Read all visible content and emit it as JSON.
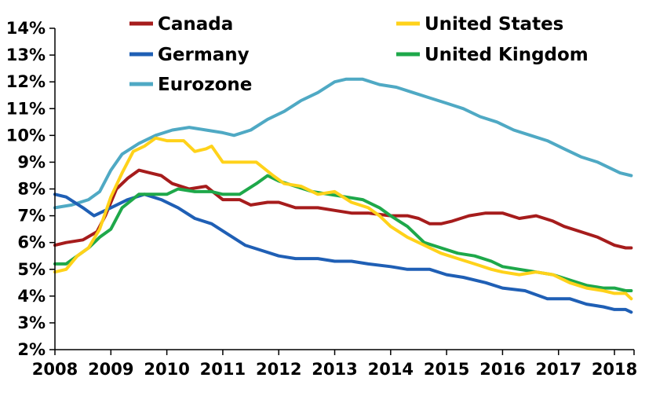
{
  "chart_data": {
    "type": "line",
    "title": "",
    "xlabel": "",
    "ylabel": "",
    "xlim": [
      2008,
      2018.35
    ],
    "ylim": [
      2,
      14
    ],
    "grid": false,
    "legend_position": "top",
    "x_ticks": [
      "2008",
      "2009",
      "2010",
      "2011",
      "2012",
      "2013",
      "2014",
      "2015",
      "2016",
      "2017",
      "2018"
    ],
    "y_ticks": [
      "2%",
      "3%",
      "4%",
      "5%",
      "6%",
      "7%",
      "8%",
      "9%",
      "10%",
      "11%",
      "12%",
      "13%",
      "14%"
    ],
    "series": [
      {
        "name": "Canada",
        "color": "#a61c1c",
        "points": [
          [
            2008,
            5.9
          ],
          [
            2008.2,
            6.0
          ],
          [
            2008.5,
            6.1
          ],
          [
            2008.75,
            6.4
          ],
          [
            2008.9,
            7.0
          ],
          [
            2009.1,
            8.0
          ],
          [
            2009.3,
            8.4
          ],
          [
            2009.5,
            8.7
          ],
          [
            2009.7,
            8.6
          ],
          [
            2009.9,
            8.5
          ],
          [
            2010.1,
            8.2
          ],
          [
            2010.4,
            8.0
          ],
          [
            2010.7,
            8.1
          ],
          [
            2011,
            7.6
          ],
          [
            2011.3,
            7.6
          ],
          [
            2011.5,
            7.4
          ],
          [
            2011.8,
            7.5
          ],
          [
            2012,
            7.5
          ],
          [
            2012.3,
            7.3
          ],
          [
            2012.7,
            7.3
          ],
          [
            2013,
            7.2
          ],
          [
            2013.3,
            7.1
          ],
          [
            2013.6,
            7.1
          ],
          [
            2014,
            7.0
          ],
          [
            2014.3,
            7.0
          ],
          [
            2014.5,
            6.9
          ],
          [
            2014.7,
            6.7
          ],
          [
            2014.9,
            6.7
          ],
          [
            2015.1,
            6.8
          ],
          [
            2015.4,
            7.0
          ],
          [
            2015.7,
            7.1
          ],
          [
            2016,
            7.1
          ],
          [
            2016.3,
            6.9
          ],
          [
            2016.6,
            7.0
          ],
          [
            2016.9,
            6.8
          ],
          [
            2017.1,
            6.6
          ],
          [
            2017.4,
            6.4
          ],
          [
            2017.7,
            6.2
          ],
          [
            2017.9,
            6.0
          ],
          [
            2018,
            5.9
          ],
          [
            2018.2,
            5.8
          ],
          [
            2018.3,
            5.8
          ]
        ]
      },
      {
        "name": "United States",
        "color": "#ffd21a",
        "points": [
          [
            2008,
            4.9
          ],
          [
            2008.2,
            5.0
          ],
          [
            2008.4,
            5.5
          ],
          [
            2008.6,
            5.8
          ],
          [
            2008.8,
            6.5
          ],
          [
            2009,
            7.7
          ],
          [
            2009.2,
            8.6
          ],
          [
            2009.4,
            9.4
          ],
          [
            2009.6,
            9.6
          ],
          [
            2009.8,
            9.9
          ],
          [
            2010,
            9.8
          ],
          [
            2010.3,
            9.8
          ],
          [
            2010.5,
            9.4
          ],
          [
            2010.7,
            9.5
          ],
          [
            2010.8,
            9.6
          ],
          [
            2011,
            9.0
          ],
          [
            2011.3,
            9.0
          ],
          [
            2011.6,
            9.0
          ],
          [
            2011.9,
            8.5
          ],
          [
            2012.1,
            8.2
          ],
          [
            2012.4,
            8.1
          ],
          [
            2012.7,
            7.8
          ],
          [
            2013,
            7.9
          ],
          [
            2013.3,
            7.5
          ],
          [
            2013.6,
            7.3
          ],
          [
            2013.8,
            7.0
          ],
          [
            2014,
            6.6
          ],
          [
            2014.3,
            6.2
          ],
          [
            2014.6,
            5.9
          ],
          [
            2014.9,
            5.6
          ],
          [
            2015.2,
            5.4
          ],
          [
            2015.5,
            5.2
          ],
          [
            2015.8,
            5.0
          ],
          [
            2016,
            4.9
          ],
          [
            2016.3,
            4.8
          ],
          [
            2016.6,
            4.9
          ],
          [
            2016.9,
            4.8
          ],
          [
            2017.2,
            4.5
          ],
          [
            2017.5,
            4.3
          ],
          [
            2017.8,
            4.2
          ],
          [
            2018,
            4.1
          ],
          [
            2018.2,
            4.1
          ],
          [
            2018.3,
            3.9
          ]
        ]
      },
      {
        "name": "Germany",
        "color": "#1f5fb5",
        "points": [
          [
            2008,
            7.8
          ],
          [
            2008.2,
            7.7
          ],
          [
            2008.5,
            7.3
          ],
          [
            2008.7,
            7.0
          ],
          [
            2009,
            7.3
          ],
          [
            2009.3,
            7.6
          ],
          [
            2009.6,
            7.8
          ],
          [
            2009.9,
            7.6
          ],
          [
            2010.2,
            7.3
          ],
          [
            2010.5,
            6.9
          ],
          [
            2010.8,
            6.7
          ],
          [
            2011.1,
            6.3
          ],
          [
            2011.4,
            5.9
          ],
          [
            2011.7,
            5.7
          ],
          [
            2012,
            5.5
          ],
          [
            2012.3,
            5.4
          ],
          [
            2012.7,
            5.4
          ],
          [
            2013,
            5.3
          ],
          [
            2013.3,
            5.3
          ],
          [
            2013.6,
            5.2
          ],
          [
            2014,
            5.1
          ],
          [
            2014.3,
            5.0
          ],
          [
            2014.7,
            5.0
          ],
          [
            2015,
            4.8
          ],
          [
            2015.3,
            4.7
          ],
          [
            2015.7,
            4.5
          ],
          [
            2016,
            4.3
          ],
          [
            2016.4,
            4.2
          ],
          [
            2016.8,
            3.9
          ],
          [
            2017.2,
            3.9
          ],
          [
            2017.5,
            3.7
          ],
          [
            2017.8,
            3.6
          ],
          [
            2018,
            3.5
          ],
          [
            2018.2,
            3.5
          ],
          [
            2018.3,
            3.4
          ]
        ]
      },
      {
        "name": "United Kingdom",
        "color": "#1ea84a",
        "points": [
          [
            2008,
            5.2
          ],
          [
            2008.2,
            5.2
          ],
          [
            2008.4,
            5.5
          ],
          [
            2008.6,
            5.8
          ],
          [
            2008.8,
            6.2
          ],
          [
            2009,
            6.5
          ],
          [
            2009.2,
            7.3
          ],
          [
            2009.5,
            7.8
          ],
          [
            2009.7,
            7.8
          ],
          [
            2010,
            7.8
          ],
          [
            2010.2,
            8.0
          ],
          [
            2010.5,
            7.9
          ],
          [
            2010.8,
            7.9
          ],
          [
            2011,
            7.8
          ],
          [
            2011.3,
            7.8
          ],
          [
            2011.6,
            8.2
          ],
          [
            2011.8,
            8.5
          ],
          [
            2012,
            8.3
          ],
          [
            2012.3,
            8.1
          ],
          [
            2012.6,
            7.9
          ],
          [
            2012.9,
            7.8
          ],
          [
            2013.2,
            7.7
          ],
          [
            2013.5,
            7.6
          ],
          [
            2013.8,
            7.3
          ],
          [
            2014,
            7.0
          ],
          [
            2014.3,
            6.6
          ],
          [
            2014.6,
            6.0
          ],
          [
            2014.9,
            5.8
          ],
          [
            2015.2,
            5.6
          ],
          [
            2015.5,
            5.5
          ],
          [
            2015.8,
            5.3
          ],
          [
            2016,
            5.1
          ],
          [
            2016.3,
            5.0
          ],
          [
            2016.6,
            4.9
          ],
          [
            2016.9,
            4.8
          ],
          [
            2017.2,
            4.6
          ],
          [
            2017.5,
            4.4
          ],
          [
            2017.8,
            4.3
          ],
          [
            2018,
            4.3
          ],
          [
            2018.2,
            4.2
          ],
          [
            2018.3,
            4.2
          ]
        ]
      },
      {
        "name": "Eurozone",
        "color": "#4fa9c4",
        "points": [
          [
            2008,
            7.3
          ],
          [
            2008.3,
            7.4
          ],
          [
            2008.6,
            7.6
          ],
          [
            2008.8,
            7.9
          ],
          [
            2009,
            8.7
          ],
          [
            2009.2,
            9.3
          ],
          [
            2009.5,
            9.7
          ],
          [
            2009.8,
            10.0
          ],
          [
            2010.1,
            10.2
          ],
          [
            2010.4,
            10.3
          ],
          [
            2010.7,
            10.2
          ],
          [
            2011,
            10.1
          ],
          [
            2011.2,
            10.0
          ],
          [
            2011.5,
            10.2
          ],
          [
            2011.8,
            10.6
          ],
          [
            2012.1,
            10.9
          ],
          [
            2012.4,
            11.3
          ],
          [
            2012.7,
            11.6
          ],
          [
            2013,
            12.0
          ],
          [
            2013.2,
            12.1
          ],
          [
            2013.5,
            12.1
          ],
          [
            2013.8,
            11.9
          ],
          [
            2014.1,
            11.8
          ],
          [
            2014.4,
            11.6
          ],
          [
            2014.7,
            11.4
          ],
          [
            2015,
            11.2
          ],
          [
            2015.3,
            11.0
          ],
          [
            2015.6,
            10.7
          ],
          [
            2015.9,
            10.5
          ],
          [
            2016.2,
            10.2
          ],
          [
            2016.5,
            10.0
          ],
          [
            2016.8,
            9.8
          ],
          [
            2017.1,
            9.5
          ],
          [
            2017.4,
            9.2
          ],
          [
            2017.7,
            9.0
          ],
          [
            2017.9,
            8.8
          ],
          [
            2018.1,
            8.6
          ],
          [
            2018.3,
            8.5
          ]
        ]
      }
    ],
    "legend": [
      {
        "series": 0,
        "col": 0,
        "row": 0
      },
      {
        "series": 1,
        "col": 1,
        "row": 0
      },
      {
        "series": 2,
        "col": 0,
        "row": 1
      },
      {
        "series": 3,
        "col": 1,
        "row": 1
      },
      {
        "series": 4,
        "col": 0,
        "row": 2
      }
    ]
  }
}
